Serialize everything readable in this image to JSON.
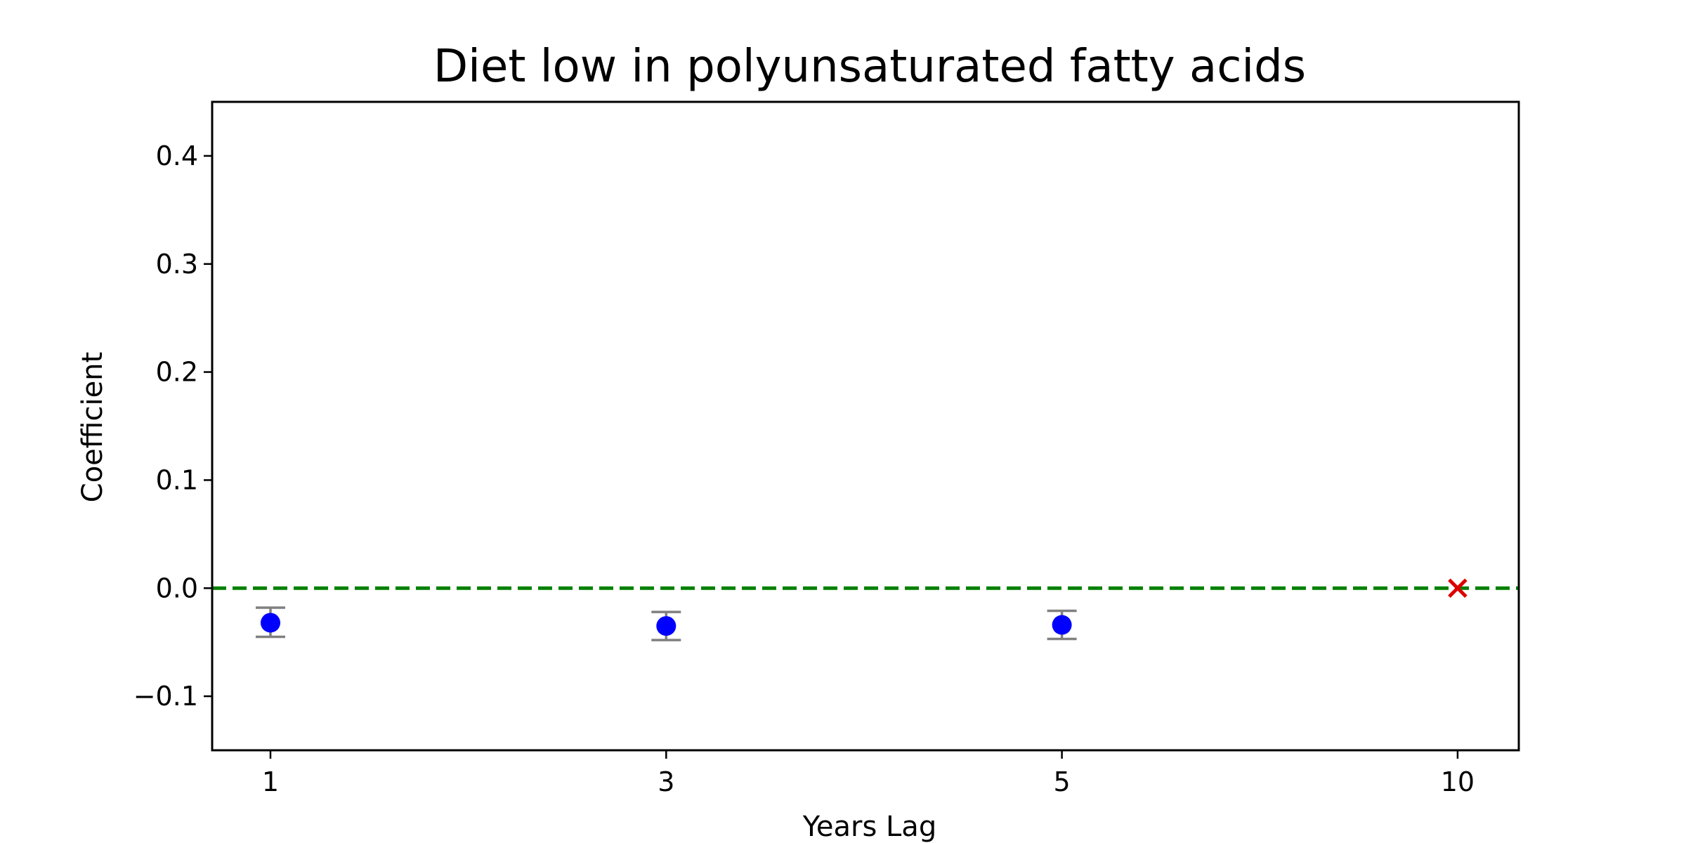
{
  "chart_data": {
    "type": "scatter",
    "title": "Diet low in polyunsaturated fatty acids",
    "xlabel": "Years Lag",
    "ylabel": "Coefficient",
    "categories": [
      "1",
      "3",
      "5",
      "10"
    ],
    "ylim": [
      -0.15,
      0.45
    ],
    "yticks": [
      -0.1,
      0.0,
      0.1,
      0.2,
      0.3,
      0.4
    ],
    "ytick_labels": [
      "−0.1",
      "0.0",
      "0.1",
      "0.2",
      "0.3",
      "0.4"
    ],
    "grid": false,
    "reference_line": {
      "y": 0.0,
      "style": "dashed",
      "color": "#008000"
    },
    "points": [
      {
        "x": "1",
        "y": -0.032,
        "lower": -0.045,
        "upper": -0.018,
        "marker": "circle",
        "color": "#0000ff"
      },
      {
        "x": "3",
        "y": -0.035,
        "lower": -0.048,
        "upper": -0.022,
        "marker": "circle",
        "color": "#0000ff"
      },
      {
        "x": "5",
        "y": -0.034,
        "lower": -0.047,
        "upper": -0.021,
        "marker": "circle",
        "color": "#0000ff"
      },
      {
        "x": "10",
        "y": 0.0,
        "marker": "x",
        "color": "#dd0000"
      }
    ],
    "errorbar_color": "#808080"
  }
}
